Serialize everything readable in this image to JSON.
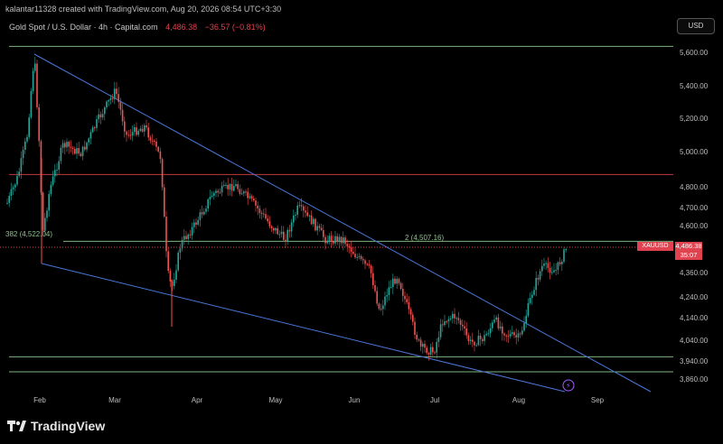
{
  "header": {
    "credit": "kalantar11328 created with TradingView.com, Aug 20, 2026 08:54 UTC+3:30"
  },
  "legend": {
    "symbol": "Gold Spot / U.S. Dollar · 4h · Capital.com",
    "price": "4,486.38",
    "change": "−36.57 (−0.81%)"
  },
  "currency_button": "USD",
  "symbol_tag": "XAUUSD",
  "price_tag": {
    "price": "4,486.38",
    "countdown": "35:07"
  },
  "fib_labels": {
    "left": "382 (4,522.04)",
    "right": "2 (4,507.16)"
  },
  "brand": "TradingView",
  "chart_data": {
    "type": "candlestick",
    "x_labels": [
      "Feb",
      "Mar",
      "Apr",
      "May",
      "Jun",
      "Jul",
      "Aug",
      "Sep"
    ],
    "y_labels": [
      "5,600.00",
      "5,400.00",
      "5,200.00",
      "5,000.00",
      "4,800.00",
      "4,700.00",
      "4,600.00",
      "4,360.00",
      "4,240.00",
      "4,140.00",
      "4,040.00",
      "3,940.00",
      "3,860.00"
    ],
    "last_price": 4486.38,
    "horizontal_levels": [
      {
        "price": 5636,
        "color": "#7fb37f"
      },
      {
        "price": 4870,
        "color": "#c0393b"
      },
      {
        "price": 4520,
        "color": "#7fb37f"
      },
      {
        "price": 3960,
        "color": "#7fb37f"
      },
      {
        "price": 3892,
        "color": "#7fb37f"
      }
    ],
    "colors": {
      "up": "#26a69a",
      "down": "#ef5350",
      "trendline": "#4a76d8",
      "price_line": "#e0424f"
    }
  }
}
